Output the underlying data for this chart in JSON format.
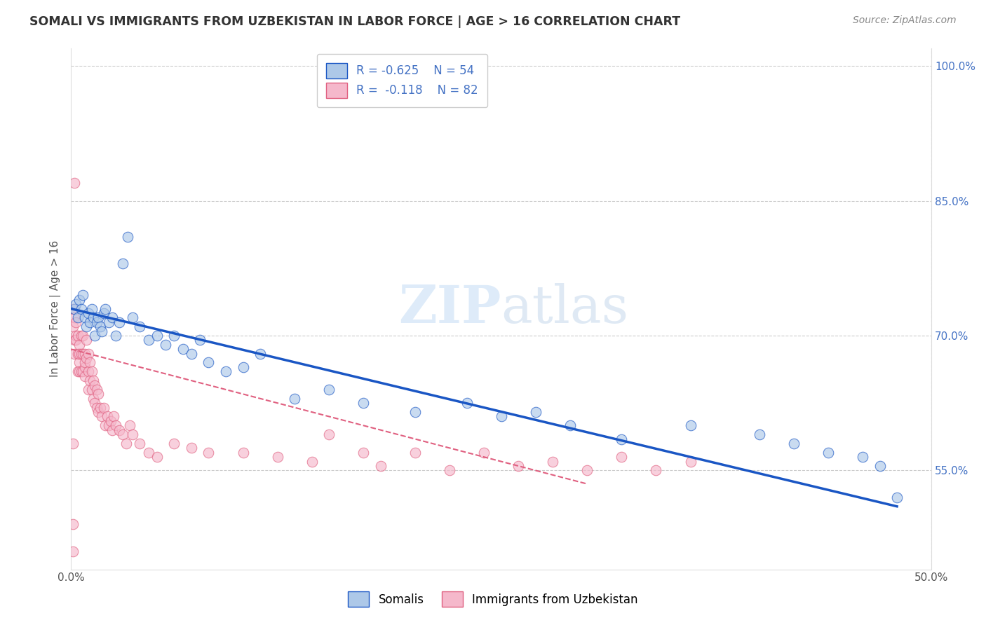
{
  "title": "SOMALI VS IMMIGRANTS FROM UZBEKISTAN IN LABOR FORCE | AGE > 16 CORRELATION CHART",
  "source": "Source: ZipAtlas.com",
  "ylabel": "In Labor Force | Age > 16",
  "xlim": [
    0.0,
    0.5
  ],
  "ylim": [
    0.44,
    1.02
  ],
  "yticks_right": [
    0.55,
    0.7,
    0.85,
    1.0
  ],
  "ytick_right_labels": [
    "55.0%",
    "70.0%",
    "85.0%",
    "100.0%"
  ],
  "somali_color": "#adc8e8",
  "uzbek_color": "#f5b8cb",
  "somali_line_color": "#1a56c4",
  "uzbek_line_color": "#e06080",
  "watermark_zip": "ZIP",
  "watermark_atlas": "atlas",
  "somali_x": [
    0.002,
    0.003,
    0.004,
    0.005,
    0.006,
    0.007,
    0.008,
    0.009,
    0.01,
    0.011,
    0.012,
    0.013,
    0.014,
    0.015,
    0.016,
    0.017,
    0.018,
    0.019,
    0.02,
    0.022,
    0.024,
    0.026,
    0.028,
    0.03,
    0.033,
    0.036,
    0.04,
    0.045,
    0.05,
    0.055,
    0.06,
    0.065,
    0.07,
    0.075,
    0.08,
    0.09,
    0.1,
    0.11,
    0.13,
    0.15,
    0.17,
    0.2,
    0.23,
    0.25,
    0.27,
    0.29,
    0.32,
    0.36,
    0.4,
    0.42,
    0.44,
    0.46,
    0.47,
    0.48
  ],
  "somali_y": [
    0.73,
    0.735,
    0.72,
    0.74,
    0.73,
    0.745,
    0.72,
    0.71,
    0.725,
    0.715,
    0.73,
    0.72,
    0.7,
    0.715,
    0.72,
    0.71,
    0.705,
    0.725,
    0.73,
    0.715,
    0.72,
    0.7,
    0.715,
    0.78,
    0.81,
    0.72,
    0.71,
    0.695,
    0.7,
    0.69,
    0.7,
    0.685,
    0.68,
    0.695,
    0.67,
    0.66,
    0.665,
    0.68,
    0.63,
    0.64,
    0.625,
    0.615,
    0.625,
    0.61,
    0.615,
    0.6,
    0.585,
    0.6,
    0.59,
    0.58,
    0.57,
    0.565,
    0.555,
    0.52
  ],
  "uzbek_x": [
    0.001,
    0.001,
    0.002,
    0.002,
    0.002,
    0.003,
    0.003,
    0.003,
    0.004,
    0.004,
    0.004,
    0.005,
    0.005,
    0.005,
    0.005,
    0.006,
    0.006,
    0.006,
    0.007,
    0.007,
    0.007,
    0.008,
    0.008,
    0.008,
    0.008,
    0.009,
    0.009,
    0.01,
    0.01,
    0.01,
    0.011,
    0.011,
    0.012,
    0.012,
    0.013,
    0.013,
    0.014,
    0.014,
    0.015,
    0.015,
    0.016,
    0.016,
    0.017,
    0.018,
    0.019,
    0.02,
    0.021,
    0.022,
    0.023,
    0.024,
    0.025,
    0.026,
    0.028,
    0.03,
    0.032,
    0.034,
    0.036,
    0.04,
    0.045,
    0.05,
    0.06,
    0.07,
    0.08,
    0.1,
    0.12,
    0.14,
    0.15,
    0.17,
    0.18,
    0.2,
    0.22,
    0.24,
    0.26,
    0.28,
    0.3,
    0.32,
    0.34,
    0.36,
    0.001,
    0.001,
    0.001,
    0.002
  ],
  "uzbek_y": [
    0.73,
    0.71,
    0.695,
    0.68,
    0.72,
    0.7,
    0.715,
    0.695,
    0.68,
    0.7,
    0.66,
    0.69,
    0.67,
    0.68,
    0.66,
    0.68,
    0.66,
    0.7,
    0.68,
    0.66,
    0.7,
    0.665,
    0.68,
    0.67,
    0.655,
    0.675,
    0.695,
    0.68,
    0.66,
    0.64,
    0.67,
    0.65,
    0.66,
    0.64,
    0.65,
    0.63,
    0.645,
    0.625,
    0.64,
    0.62,
    0.635,
    0.615,
    0.62,
    0.61,
    0.62,
    0.6,
    0.61,
    0.6,
    0.605,
    0.595,
    0.61,
    0.6,
    0.595,
    0.59,
    0.58,
    0.6,
    0.59,
    0.58,
    0.57,
    0.565,
    0.58,
    0.575,
    0.57,
    0.57,
    0.565,
    0.56,
    0.59,
    0.57,
    0.555,
    0.57,
    0.55,
    0.57,
    0.555,
    0.56,
    0.55,
    0.565,
    0.55,
    0.56,
    0.58,
    0.49,
    0.46,
    0.87
  ]
}
